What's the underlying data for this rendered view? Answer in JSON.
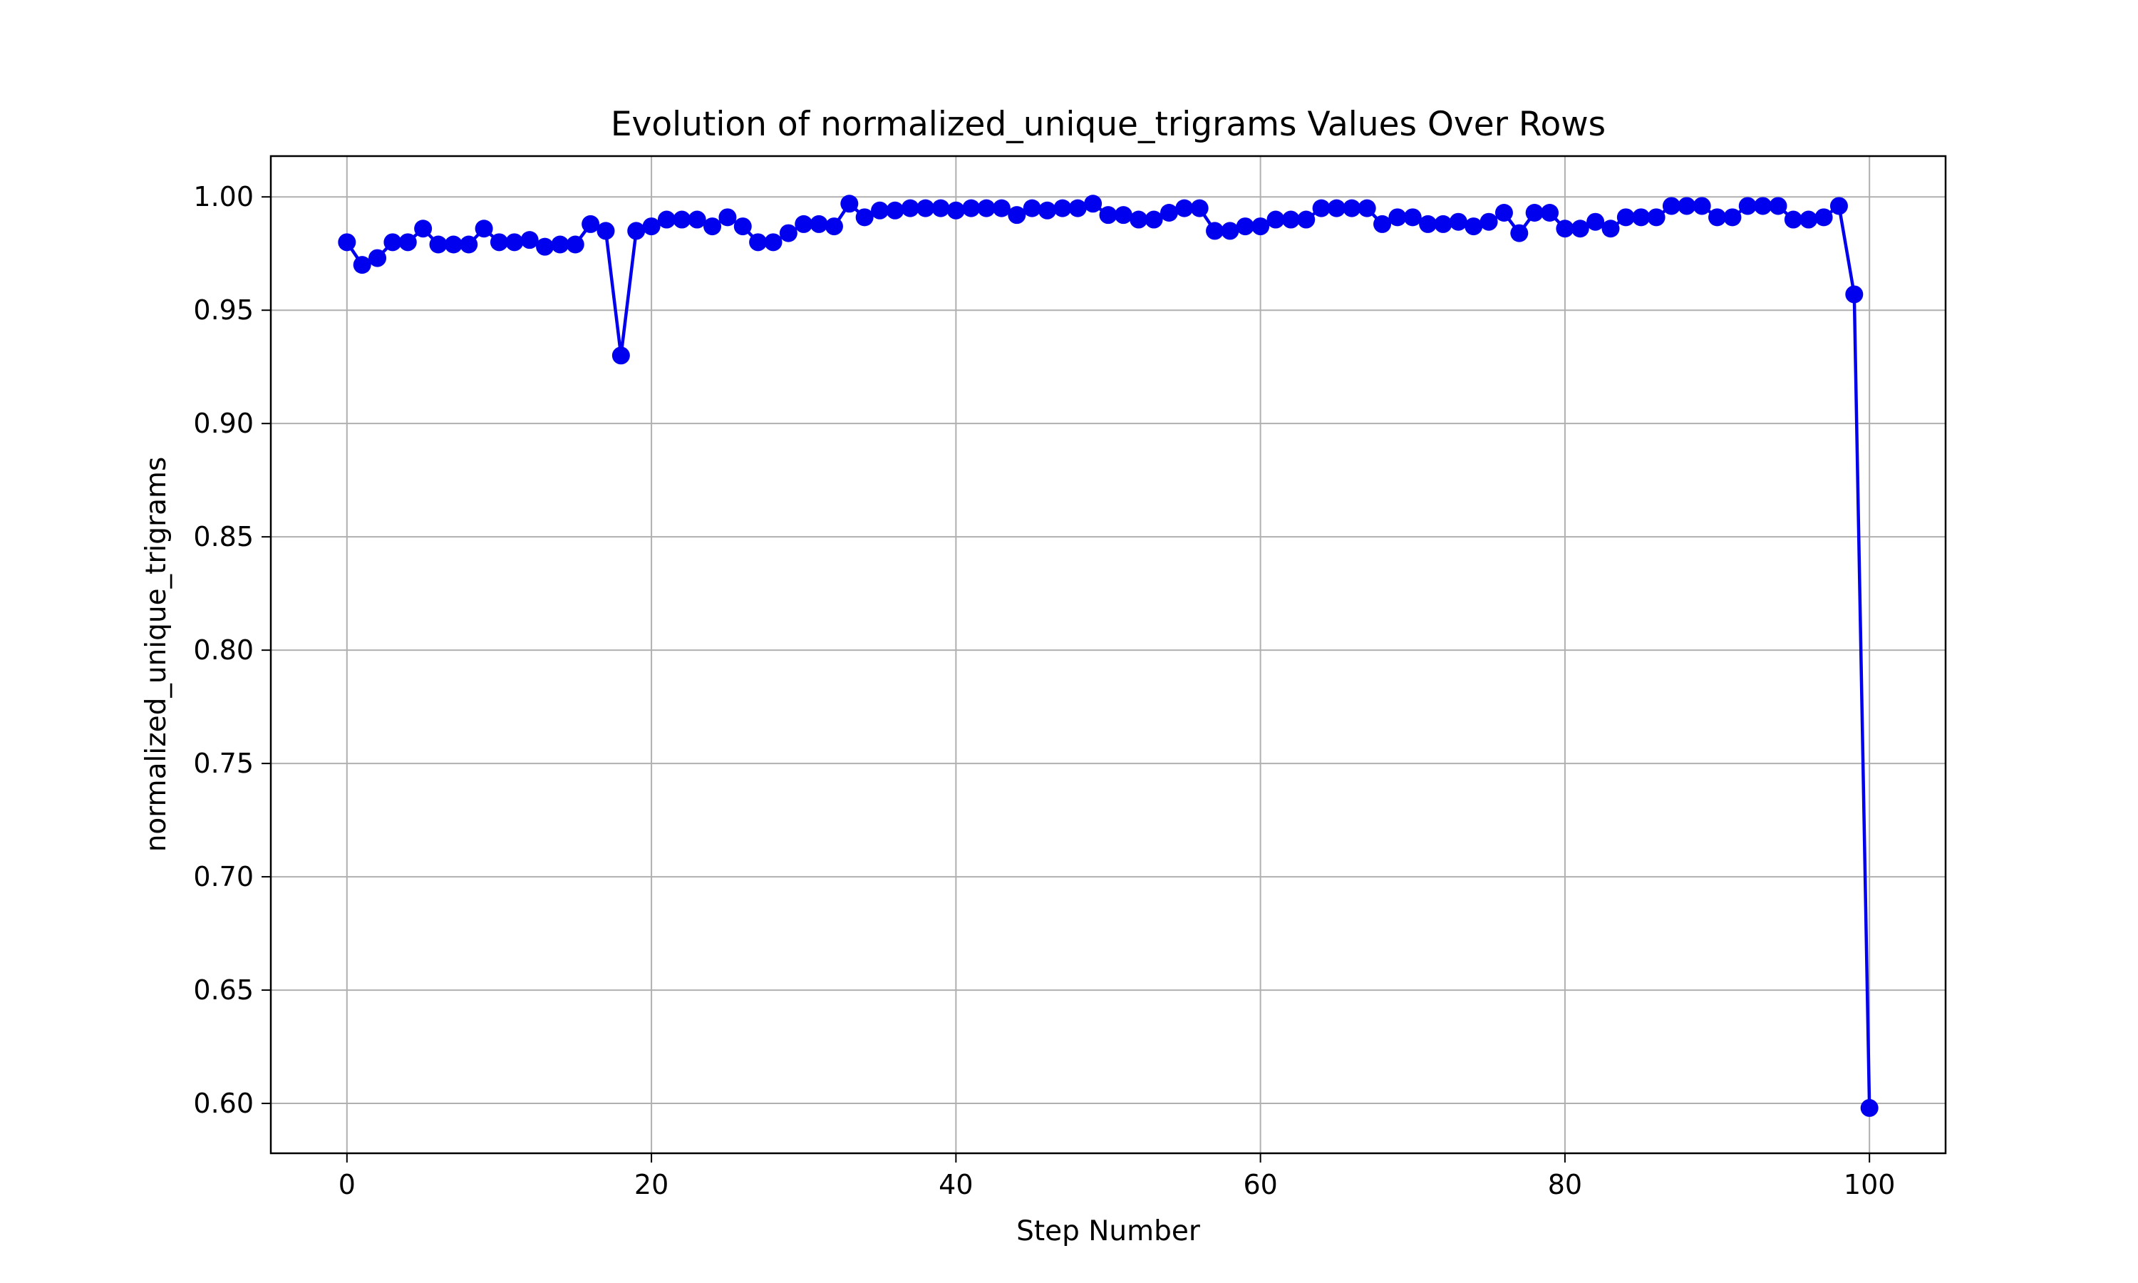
{
  "chart_data": {
    "type": "line",
    "title": "Evolution of normalized_unique_trigrams Values Over Rows",
    "xlabel": "Step Number",
    "ylabel": "normalized_unique_trigrams",
    "xlim": [
      -5,
      105
    ],
    "ylim": [
      0.578,
      1.018
    ],
    "xticks": [
      0,
      20,
      40,
      60,
      80,
      100
    ],
    "yticks": [
      0.6,
      0.65,
      0.7,
      0.75,
      0.8,
      0.85,
      0.9,
      0.95,
      1.0
    ],
    "xtick_labels": [
      "0",
      "20",
      "40",
      "60",
      "80",
      "100"
    ],
    "ytick_labels": [
      "0.60",
      "0.65",
      "0.70",
      "0.75",
      "0.80",
      "0.85",
      "0.90",
      "0.95",
      "1.00"
    ],
    "grid": true,
    "legend": false,
    "line_color": "#0000ee",
    "marker": "circle",
    "series": [
      {
        "x": [
          0,
          1,
          2,
          3,
          4,
          5,
          6,
          7,
          8,
          9,
          10,
          11,
          12,
          13,
          14,
          15,
          16,
          17,
          18,
          19,
          20,
          21,
          22,
          23,
          24,
          25,
          26,
          27,
          28,
          29,
          30,
          31,
          32,
          33,
          34,
          35,
          36,
          37,
          38,
          39,
          40,
          41,
          42,
          43,
          44,
          45,
          46,
          47,
          48,
          49,
          50,
          51,
          52,
          53,
          54,
          55,
          56,
          57,
          58,
          59,
          60,
          61,
          62,
          63,
          64,
          65,
          66,
          67,
          68,
          69,
          70,
          71,
          72,
          73,
          74,
          75,
          76,
          77,
          78,
          79,
          80,
          81,
          82,
          83,
          84,
          85,
          86,
          87,
          88,
          89,
          90,
          91,
          92,
          93,
          94,
          95,
          96,
          97,
          98,
          99,
          100
        ],
        "y": [
          0.98,
          0.97,
          0.973,
          0.98,
          0.98,
          0.986,
          0.979,
          0.979,
          0.979,
          0.986,
          0.98,
          0.98,
          0.981,
          0.978,
          0.979,
          0.979,
          0.988,
          0.985,
          0.93,
          0.985,
          0.987,
          0.99,
          0.99,
          0.99,
          0.987,
          0.991,
          0.987,
          0.98,
          0.98,
          0.984,
          0.988,
          0.988,
          0.987,
          0.997,
          0.991,
          0.994,
          0.994,
          0.995,
          0.995,
          0.995,
          0.994,
          0.995,
          0.995,
          0.995,
          0.992,
          0.995,
          0.994,
          0.995,
          0.995,
          0.997,
          0.992,
          0.992,
          0.99,
          0.99,
          0.993,
          0.995,
          0.995,
          0.985,
          0.985,
          0.987,
          0.987,
          0.99,
          0.99,
          0.99,
          0.995,
          0.995,
          0.995,
          0.995,
          0.988,
          0.991,
          0.991,
          0.988,
          0.988,
          0.989,
          0.987,
          0.989,
          0.993,
          0.984,
          0.993,
          0.993,
          0.986,
          0.986,
          0.989,
          0.986,
          0.991,
          0.991,
          0.991,
          0.996,
          0.996,
          0.996,
          0.991,
          0.991,
          0.996,
          0.996,
          0.996,
          0.99,
          0.99,
          0.991,
          0.996,
          0.957,
          0.598
        ]
      }
    ]
  }
}
